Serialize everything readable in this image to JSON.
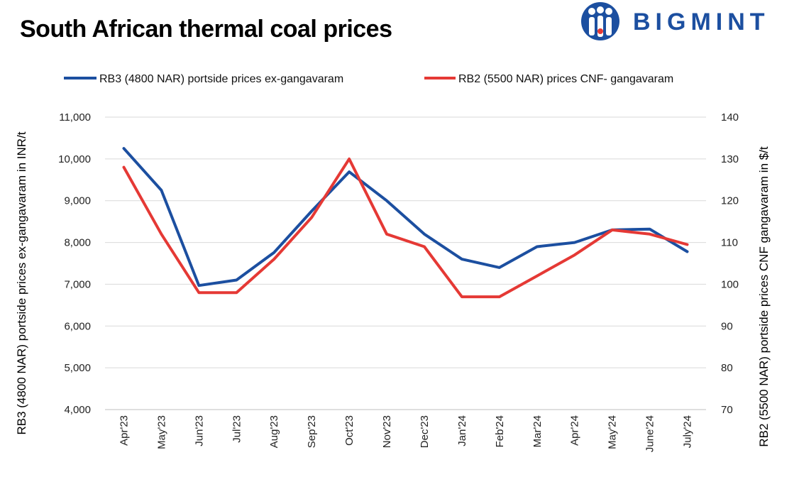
{
  "title": "South African thermal coal prices",
  "brand": {
    "name": "BIGMINT",
    "color": "#1c4fa0"
  },
  "chart_data": {
    "type": "line",
    "categories": [
      "Apr'23",
      "May'23",
      "Jun'23",
      "Jul'23",
      "Aug'23",
      "Sep'23",
      "Oct'23",
      "Nov'23",
      "Dec'23",
      "Jan'24",
      "Feb'24",
      "Mar'24",
      "Apr'24",
      "May'24",
      "June'24",
      "July'24"
    ],
    "series": [
      {
        "name": "RB3 (4800 NAR) portside prices ex-gangavaram",
        "axis": "left",
        "color": "#1c4fa0",
        "values": [
          10250,
          9250,
          6970,
          7100,
          7760,
          8750,
          9690,
          9000,
          8200,
          7600,
          7400,
          7900,
          8000,
          8300,
          8320,
          7780
        ]
      },
      {
        "name": "RB2 (5500 NAR) prices CNF- gangavaram",
        "axis": "right",
        "color": "#e53935",
        "values": [
          128,
          112,
          98,
          98,
          106,
          116,
          130,
          112,
          109,
          97,
          97,
          102,
          107,
          113,
          112,
          109.5
        ]
      }
    ],
    "ylabel": "RB3 (4800 NAR) portside prices ex-gangavaram  in INR/t",
    "y2label": "RB2 (5500 NAR) portside prices CNF  gangavaram in $/t",
    "ylim": [
      4000,
      11000
    ],
    "y2lim": [
      70,
      140
    ],
    "yticks": [
      "4,000",
      "5,000",
      "6,000",
      "7,000",
      "8,000",
      "9,000",
      "10,000",
      "11,000"
    ],
    "y2ticks": [
      "70",
      "80",
      "90",
      "100",
      "110",
      "120",
      "130",
      "140"
    ],
    "grid": true,
    "legend_position": "top"
  }
}
